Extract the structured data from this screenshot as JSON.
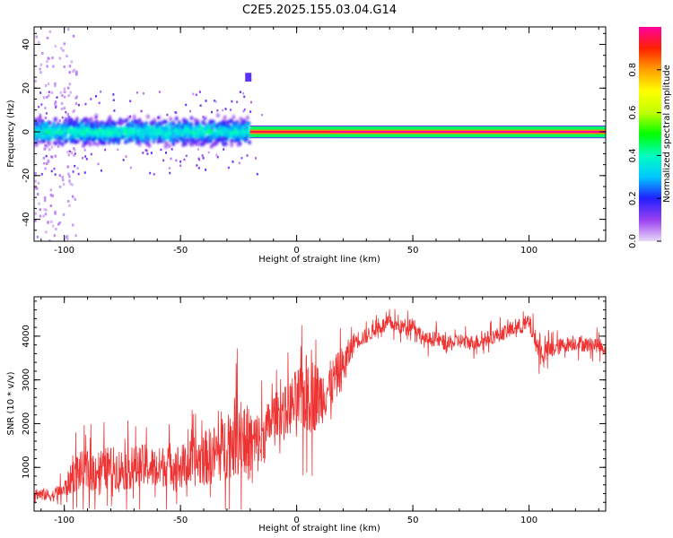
{
  "figure": {
    "title": "C2E5.2025.155.03.04.G14"
  },
  "chart_data": [
    {
      "type": "heatmap",
      "xlabel": "Height of straight line (km)",
      "ylabel": "Frequency (Hz)",
      "xlim": [
        -113,
        133
      ],
      "ylim": [
        -50,
        48
      ],
      "xticks": [
        -100,
        -50,
        0,
        50,
        100
      ],
      "yticks": [
        -40,
        -20,
        0,
        20,
        40
      ],
      "grid": false,
      "colorbar": {
        "label": "Normalized spectral amplitude",
        "range": [
          0,
          1
        ],
        "ticks": [
          0.0,
          0.2,
          0.4,
          0.6,
          0.8
        ],
        "colormap": [
          "#e8d8f8",
          "#9a40f0",
          "#2020ff",
          "#00c8ff",
          "#00ffc0",
          "#00ff00",
          "#c0ff00",
          "#ffff00",
          "#ffa000",
          "#ff2000",
          "#ff00a0"
        ]
      },
      "regions": [
        {
          "x_range": [
            -113,
            -20
          ],
          "freq_range": [
            -6,
            6
          ],
          "amplitude": 0.4
        },
        {
          "x_range": [
            -20,
            15
          ],
          "freq_range": [
            -1,
            1
          ],
          "amplitude": 0.95
        },
        {
          "x_range": [
            15,
            133
          ],
          "freq_range": [
            -1,
            1
          ],
          "amplitude": 1.0
        }
      ],
      "features": [
        {
          "x": -21,
          "freq_range": [
            23,
            27
          ],
          "amplitude": 0.15
        },
        {
          "x_range": [
            -113,
            -95
          ],
          "freq_range": [
            -50,
            48
          ],
          "amplitude": 0.05
        }
      ]
    },
    {
      "type": "line",
      "xlabel": "Height of straight line (km)",
      "ylabel": "SNR (10 * v/v)",
      "xlim": [
        -113,
        133
      ],
      "ylim": [
        0,
        4900
      ],
      "xticks": [
        -100,
        -50,
        0,
        50,
        100
      ],
      "yticks": [
        1000,
        2000,
        3000,
        4000
      ],
      "grid": false,
      "color": "#ee3333",
      "series": [
        {
          "x": [
            -112,
            -105,
            -100,
            -95,
            -90,
            -85,
            -80,
            -75,
            -70,
            -65,
            -60,
            -55,
            -50,
            -45,
            -40,
            -35,
            -30,
            -25,
            -20,
            -15,
            -10,
            -5,
            0,
            5,
            10,
            15,
            20,
            25,
            30,
            35,
            40,
            45,
            50,
            55,
            60,
            65,
            70,
            75,
            80,
            85,
            90,
            95,
            100,
            105,
            110,
            115,
            120,
            125,
            130,
            133
          ],
          "values": [
            400,
            350,
            500,
            900,
            900,
            950,
            1000,
            950,
            1000,
            1050,
            950,
            1100,
            1000,
            1100,
            1200,
            1300,
            1500,
            1800,
            1500,
            1600,
            2200,
            2300,
            2500,
            2700,
            2600,
            2900,
            3300,
            3900,
            4000,
            4200,
            4300,
            4200,
            4300,
            3900,
            3950,
            3800,
            3900,
            3850,
            3900,
            4000,
            4100,
            4200,
            4300,
            3600,
            3700,
            3800,
            3850,
            3800,
            3800,
            3700
          ],
          "spread": [
            200,
            200,
            300,
            650,
            700,
            700,
            700,
            700,
            700,
            700,
            700,
            700,
            750,
            800,
            900,
            1000,
            1100,
            1400,
            1200,
            1000,
            700,
            800,
            1100,
            1400,
            1000,
            800,
            700,
            300,
            250,
            250,
            250,
            250,
            250,
            250,
            250,
            250,
            250,
            250,
            250,
            250,
            250,
            250,
            300,
            400,
            300,
            250,
            250,
            250,
            250,
            250
          ]
        }
      ]
    }
  ]
}
